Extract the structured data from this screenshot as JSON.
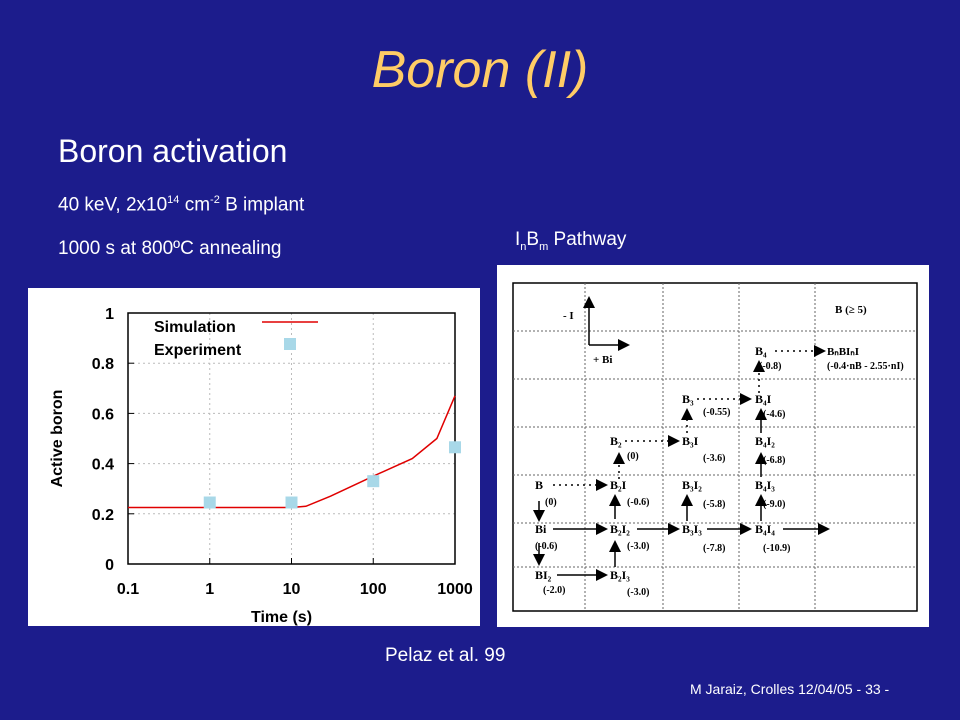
{
  "slide": {
    "title": "Boron (II)",
    "subtitle": "Boron activation",
    "line1": {
      "pre": "40 keV, 2x10",
      "sup1": "14",
      "mid": " cm",
      "sup2": "-2",
      "post": " B implant"
    },
    "line2": "1000 s at 800ºC annealing",
    "pathway": {
      "a": "I",
      "sub1": "n",
      "b": "B",
      "sub2": "m",
      "c": " Pathway"
    },
    "citation": "Pelaz et al. 99",
    "footer": "M Jaraiz, Crolles 12/04/05    - 33 -"
  },
  "chart_data": {
    "type": "scatter",
    "xlabel": "Time (s)",
    "ylabel": "Active boron",
    "xscale": "log",
    "xlim": [
      0.1,
      1000
    ],
    "ylim": [
      0,
      1
    ],
    "xticks": [
      0.1,
      1,
      10,
      100,
      1000
    ],
    "xtick_labels": [
      "0.1",
      "1",
      "10",
      "100",
      "1000"
    ],
    "yticks": [
      0,
      0.2,
      0.4,
      0.6,
      0.8,
      1
    ],
    "ytick_labels": [
      "0",
      "0.2",
      "0.4",
      "0.6",
      "0.8",
      "1"
    ],
    "grid": true,
    "legend": "top-left",
    "series": [
      {
        "name": "Simulation",
        "kind": "line",
        "color": "#e00000",
        "x": [
          0.1,
          1,
          3,
          10,
          15,
          30,
          100,
          300,
          600,
          1000
        ],
        "y": [
          0.225,
          0.225,
          0.225,
          0.225,
          0.23,
          0.27,
          0.35,
          0.42,
          0.5,
          0.67
        ]
      },
      {
        "name": "Experiment",
        "kind": "marker",
        "color": "#a8d8e8",
        "x": [
          1,
          10,
          100,
          1000
        ],
        "y": [
          0.245,
          0.245,
          0.33,
          0.465
        ]
      }
    ]
  },
  "diagram": {
    "nodes": [
      {
        "id": "B4",
        "label": "B₄",
        "e": "(-0.8)"
      },
      {
        "id": "BnBI",
        "label": "BₙBIₙI",
        "e": "(-0.4·nB - 2.55·nI)"
      },
      {
        "id": "B3",
        "label": "B₃",
        "e": "(-0.55)"
      },
      {
        "id": "B4I",
        "label": "B₄I",
        "e": "(-4.6)"
      },
      {
        "id": "B2",
        "label": "B₂",
        "e": "(0)"
      },
      {
        "id": "B3I",
        "label": "B₃I",
        "e": "(-3.6)"
      },
      {
        "id": "B4I2",
        "label": "B₄I₂",
        "e": "(-6.8)"
      },
      {
        "id": "B",
        "label": "B",
        "e": "(0)"
      },
      {
        "id": "B2I",
        "label": "B₂I",
        "e": "(-0.6)"
      },
      {
        "id": "B3I2",
        "label": "B₃I₂",
        "e": "(-5.8)"
      },
      {
        "id": "B4I3",
        "label": "B₄I₃",
        "e": "(-9.0)"
      },
      {
        "id": "Bi",
        "label": "Bi",
        "e": "(-0.6)"
      },
      {
        "id": "B2I2",
        "label": "B₂I₂",
        "e": "(-3.0)"
      },
      {
        "id": "B3I3",
        "label": "B₃I₃",
        "e": "(-7.8)"
      },
      {
        "id": "B4I4",
        "label": "B₄I₄",
        "e": "(-10.9)"
      },
      {
        "id": "BI2",
        "label": "BI₂",
        "e": "(-2.0)"
      },
      {
        "id": "B2I3",
        "label": "B₂I₃",
        "e": "(-3.0)"
      }
    ],
    "axes": {
      "up": "- I",
      "right": "+ Bi"
    },
    "corner": "B (≥ 5)"
  }
}
